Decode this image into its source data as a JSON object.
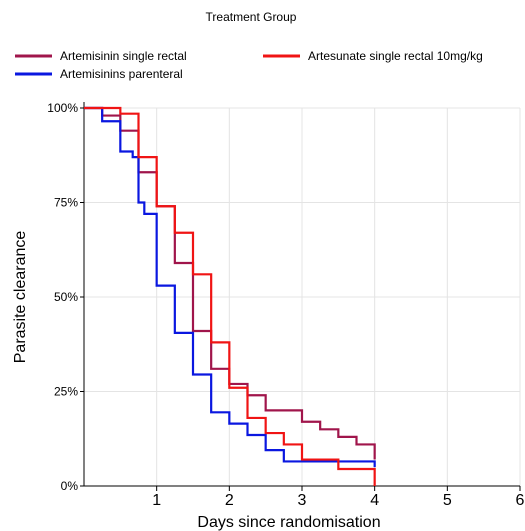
{
  "chart_data": {
    "type": "line",
    "step": true,
    "legend_title": "Treatment Group",
    "legend_position": "top",
    "xlabel": "Days since randomisation",
    "ylabel": "Parasite clearance",
    "xlim": [
      0,
      6
    ],
    "ylim": [
      0,
      1
    ],
    "x_ticks": [
      1,
      2,
      3,
      4,
      5,
      6
    ],
    "x_tick_labels": [
      "1",
      "2",
      "3",
      "4",
      "5",
      "6"
    ],
    "y_ticks": [
      0,
      0.25,
      0.5,
      0.75,
      1
    ],
    "y_tick_labels": [
      "0%",
      "25%",
      "50%",
      "75%",
      "100%"
    ],
    "grid": true,
    "series": [
      {
        "name": "Artemisinin single rectal",
        "color": "#a0154b",
        "x": [
          0,
          0.25,
          0.5,
          0.75,
          1.0,
          1.25,
          1.5,
          1.75,
          2.0,
          2.25,
          2.5,
          3.0,
          3.25,
          3.5,
          3.75,
          4.0
        ],
        "y": [
          1.0,
          0.98,
          0.94,
          0.83,
          0.74,
          0.59,
          0.41,
          0.31,
          0.27,
          0.24,
          0.2,
          0.17,
          0.15,
          0.13,
          0.11,
          0.07
        ]
      },
      {
        "name": "Artemisinins parenteral",
        "color": "#0a17e0",
        "x": [
          0,
          0.25,
          0.5,
          0.67,
          0.75,
          0.83,
          1.0,
          1.25,
          1.5,
          1.75,
          2.0,
          2.25,
          2.5,
          2.75,
          4.0
        ],
        "y": [
          1.0,
          0.965,
          0.885,
          0.87,
          0.75,
          0.72,
          0.53,
          0.405,
          0.295,
          0.195,
          0.165,
          0.135,
          0.095,
          0.065,
          0.05
        ]
      },
      {
        "name": "Artesunate single rectal 10mg/kg",
        "color": "#f01414",
        "x": [
          0,
          0.5,
          0.75,
          1.0,
          1.25,
          1.5,
          1.75,
          2.0,
          2.25,
          2.5,
          2.75,
          3.0,
          3.5,
          4.0
        ],
        "y": [
          1.0,
          0.985,
          0.87,
          0.74,
          0.67,
          0.56,
          0.38,
          0.26,
          0.18,
          0.14,
          0.11,
          0.07,
          0.045,
          0.0
        ]
      }
    ]
  }
}
